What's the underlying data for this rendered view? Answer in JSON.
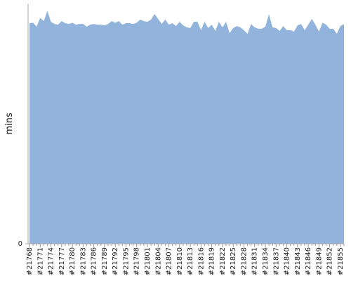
{
  "chart_data": {
    "type": "area",
    "y_label": "mins",
    "color": "#92b4dc",
    "categories": [
      "#21768",
      null,
      null,
      "#21771",
      null,
      null,
      "#21774",
      null,
      null,
      "#21777",
      null,
      null,
      "#21780",
      null,
      null,
      "#21783",
      null,
      null,
      "#21786",
      null,
      null,
      "#21789",
      null,
      null,
      "#21792",
      null,
      null,
      "#21795",
      null,
      null,
      "#21798",
      null,
      null,
      "#21801",
      null,
      null,
      "#21804",
      null,
      null,
      "#21807",
      null,
      null,
      "#21810",
      null,
      null,
      "#21813",
      null,
      null,
      "#21816",
      null,
      null,
      "#21819",
      null,
      null,
      "#21822",
      null,
      null,
      "#21825",
      null,
      null,
      "#21828",
      null,
      null,
      "#21831",
      null,
      null,
      "#21834",
      null,
      null,
      "#21837",
      null,
      null,
      "#21840",
      null,
      null,
      "#21843",
      null,
      null,
      "#21846",
      null,
      null,
      "#21849",
      null,
      null,
      "#21852",
      null,
      null,
      "#21855",
      null
    ],
    "values": [
      91.8,
      92,
      90.4,
      94,
      92.7,
      97,
      92.4,
      91.5,
      91.2,
      92.7,
      91.8,
      91.5,
      92,
      91.2,
      91.5,
      91.5,
      90.4,
      91.2,
      91.5,
      91.2,
      91.2,
      90.9,
      91.5,
      92.7,
      92,
      92.7,
      91.2,
      91.8,
      91.8,
      91.5,
      92,
      93.3,
      92.7,
      92.4,
      93.3,
      95.6,
      93.6,
      91.5,
      93.3,
      91.2,
      91.8,
      90.6,
      92.4,
      90.9,
      90.1,
      89.8,
      92.4,
      92.4,
      88.9,
      92.4,
      89.8,
      91.2,
      88.6,
      92.4,
      90.1,
      92.4,
      87.7,
      89.8,
      90.6,
      90.1,
      88.9,
      87.4,
      91.5,
      90.1,
      89.5,
      89.5,
      90.4,
      95.6,
      90.1,
      89.8,
      88.6,
      90.6,
      88.9,
      88.9,
      88.3,
      90.9,
      91.5,
      88.9,
      91.2,
      93.6,
      91.2,
      88.3,
      92,
      91.2,
      89.5,
      89.5,
      87.4,
      90.6,
      91.5
    ],
    "ylim": [
      0,
      100
    ],
    "yticks": [
      0
    ]
  }
}
